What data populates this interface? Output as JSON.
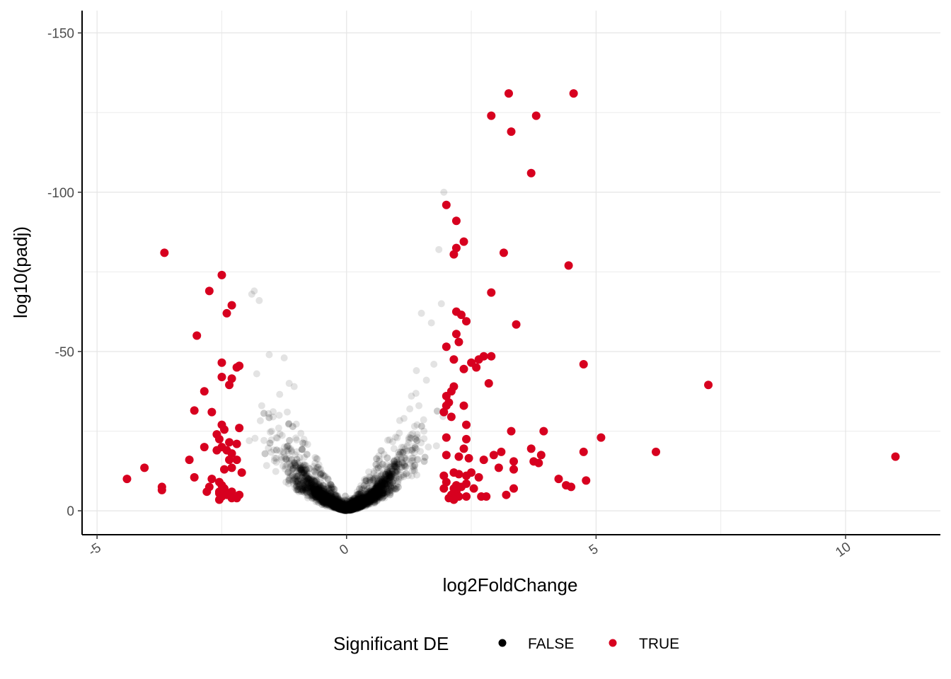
{
  "chart_data": {
    "type": "scatter",
    "xlabel": "log2FoldChange",
    "ylabel": "log10(padj)",
    "xlim": [
      -5.3,
      11.9
    ],
    "ylim": [
      7.5,
      -157
    ],
    "y_reversed": true,
    "x_ticks": [
      -5,
      0,
      5,
      10
    ],
    "x_tick_labels": [
      "-5",
      "0",
      "5",
      "10"
    ],
    "y_ticks": [
      0,
      -50,
      -100,
      -150
    ],
    "y_tick_labels": [
      "0",
      "-50",
      "-100",
      "-150"
    ],
    "grid": true,
    "legend": {
      "title": "Significant DE",
      "position": "bottom",
      "entries": [
        {
          "label": "FALSE",
          "color": "#000000"
        },
        {
          "label": "TRUE",
          "color": "#d7001f"
        }
      ]
    },
    "colors": {
      "false": "#000000",
      "true": "#d7001f"
    },
    "series": [
      {
        "name": "TRUE",
        "color": "#d7001f",
        "points": [
          [
            3.25,
            -131
          ],
          [
            4.55,
            -131
          ],
          [
            2.9,
            -124
          ],
          [
            3.8,
            -124
          ],
          [
            3.3,
            -119
          ],
          [
            3.7,
            -106
          ],
          [
            2,
            -96
          ],
          [
            2.2,
            -91
          ],
          [
            2.35,
            -84.5
          ],
          [
            2.2,
            -82.5
          ],
          [
            2.15,
            -80.5
          ],
          [
            3.15,
            -81
          ],
          [
            -3.65,
            -81
          ],
          [
            4.45,
            -77
          ],
          [
            -2.5,
            -74
          ],
          [
            -2.75,
            -69
          ],
          [
            2.9,
            -68.5
          ],
          [
            -2.3,
            -64.5
          ],
          [
            -2.4,
            -62
          ],
          [
            2.2,
            -62.5
          ],
          [
            2.3,
            -61.5
          ],
          [
            2.4,
            -59.5
          ],
          [
            3.4,
            -58.5
          ],
          [
            2.2,
            -55.5
          ],
          [
            -3,
            -55
          ],
          [
            2.25,
            -53
          ],
          [
            2,
            -51.5
          ],
          [
            2.75,
            -48.5
          ],
          [
            2.9,
            -48.5
          ],
          [
            2.65,
            -47.5
          ],
          [
            2.15,
            -47.5
          ],
          [
            2.5,
            -46.5
          ],
          [
            -2.5,
            -46.5
          ],
          [
            2.6,
            -45
          ],
          [
            4.75,
            -46
          ],
          [
            -2.15,
            -45.5
          ],
          [
            -2.2,
            -45
          ],
          [
            2.35,
            -44.5
          ],
          [
            -2.5,
            -42
          ],
          [
            -2.3,
            -41.5
          ],
          [
            -2.35,
            -39.5
          ],
          [
            2.85,
            -40
          ],
          [
            7.25,
            -39.5
          ],
          [
            2.15,
            -39
          ],
          [
            2.1,
            -37.5
          ],
          [
            -2.85,
            -37.5
          ],
          [
            2,
            -36
          ],
          [
            2.05,
            -34
          ],
          [
            2,
            -33
          ],
          [
            2.35,
            -33
          ],
          [
            -2.7,
            -31
          ],
          [
            -3.05,
            -31.5
          ],
          [
            1.95,
            -31
          ],
          [
            2.1,
            -29.5
          ],
          [
            2.4,
            -27
          ],
          [
            -2.5,
            -27
          ],
          [
            3.3,
            -25
          ],
          [
            3.95,
            -25
          ],
          [
            -2.15,
            -26
          ],
          [
            -2.6,
            -24
          ],
          [
            -2.45,
            -25.5
          ],
          [
            2,
            -23
          ],
          [
            5.1,
            -23
          ],
          [
            2.4,
            -22.5
          ],
          [
            -2.35,
            -21.5
          ],
          [
            -2.55,
            -22.5
          ],
          [
            -2.2,
            -21
          ],
          [
            -2.85,
            -20
          ],
          [
            -2.5,
            -20
          ],
          [
            -2.6,
            -19
          ],
          [
            -2.4,
            -19
          ],
          [
            -2.3,
            -18
          ],
          [
            2.35,
            -19.5
          ],
          [
            3.7,
            -19.5
          ],
          [
            3.1,
            -18.5
          ],
          [
            2.95,
            -17.5
          ],
          [
            3.9,
            -17.5
          ],
          [
            4.75,
            -18.5
          ],
          [
            6.2,
            -18.5
          ],
          [
            11,
            -17
          ],
          [
            2,
            -17.5
          ],
          [
            2.25,
            -17
          ],
          [
            -3.15,
            -16
          ],
          [
            -2.35,
            -16
          ],
          [
            -2.2,
            -16
          ],
          [
            2.45,
            -16.5
          ],
          [
            2.75,
            -16
          ],
          [
            3.35,
            -15.5
          ],
          [
            3.75,
            -15.5
          ],
          [
            3.85,
            -15
          ],
          [
            -4.05,
            -13.5
          ],
          [
            -2.3,
            -13.5
          ],
          [
            -2.45,
            -13
          ],
          [
            -2.1,
            -12
          ],
          [
            3.05,
            -13.5
          ],
          [
            3.35,
            -13
          ],
          [
            2.15,
            -12
          ],
          [
            2.5,
            -12
          ],
          [
            2.25,
            -11.5
          ],
          [
            1.95,
            -11
          ],
          [
            2.4,
            -11
          ],
          [
            -3.05,
            -10.5
          ],
          [
            2.65,
            -10.5
          ],
          [
            4.25,
            -10
          ],
          [
            2,
            -9
          ],
          [
            -4.4,
            -10
          ],
          [
            -2.7,
            -10
          ],
          [
            4.8,
            -9.5
          ],
          [
            -2.55,
            -9
          ],
          [
            2.4,
            -8.5
          ],
          [
            2.2,
            -8
          ],
          [
            -3.7,
            -7.5
          ],
          [
            -2.75,
            -7.5
          ],
          [
            -2.5,
            -8
          ],
          [
            2.3,
            -7.5
          ],
          [
            3.35,
            -7
          ],
          [
            2.55,
            -7
          ],
          [
            4.4,
            -8
          ],
          [
            4.5,
            -7.5
          ],
          [
            2.15,
            -7
          ],
          [
            -3.7,
            -6.5
          ],
          [
            -2.55,
            -6
          ],
          [
            -2.45,
            -7
          ],
          [
            -2.3,
            -6
          ],
          [
            -2.8,
            -6
          ],
          [
            2.2,
            -6
          ],
          [
            1.95,
            -7
          ],
          [
            -2.55,
            -5.5
          ],
          [
            2.1,
            -5
          ],
          [
            2.8,
            -4.5
          ],
          [
            3.2,
            -5
          ],
          [
            2.7,
            -4.5
          ],
          [
            2.25,
            -4.5
          ],
          [
            2.4,
            -4.5
          ],
          [
            2.05,
            -4
          ],
          [
            -2.5,
            -4.5
          ],
          [
            -2.3,
            -4
          ],
          [
            -2.55,
            -3.5
          ],
          [
            2.15,
            -3.5
          ],
          [
            -2.2,
            -4
          ],
          [
            -2.4,
            -5
          ],
          [
            -2.15,
            -5
          ]
        ]
      }
    ]
  }
}
